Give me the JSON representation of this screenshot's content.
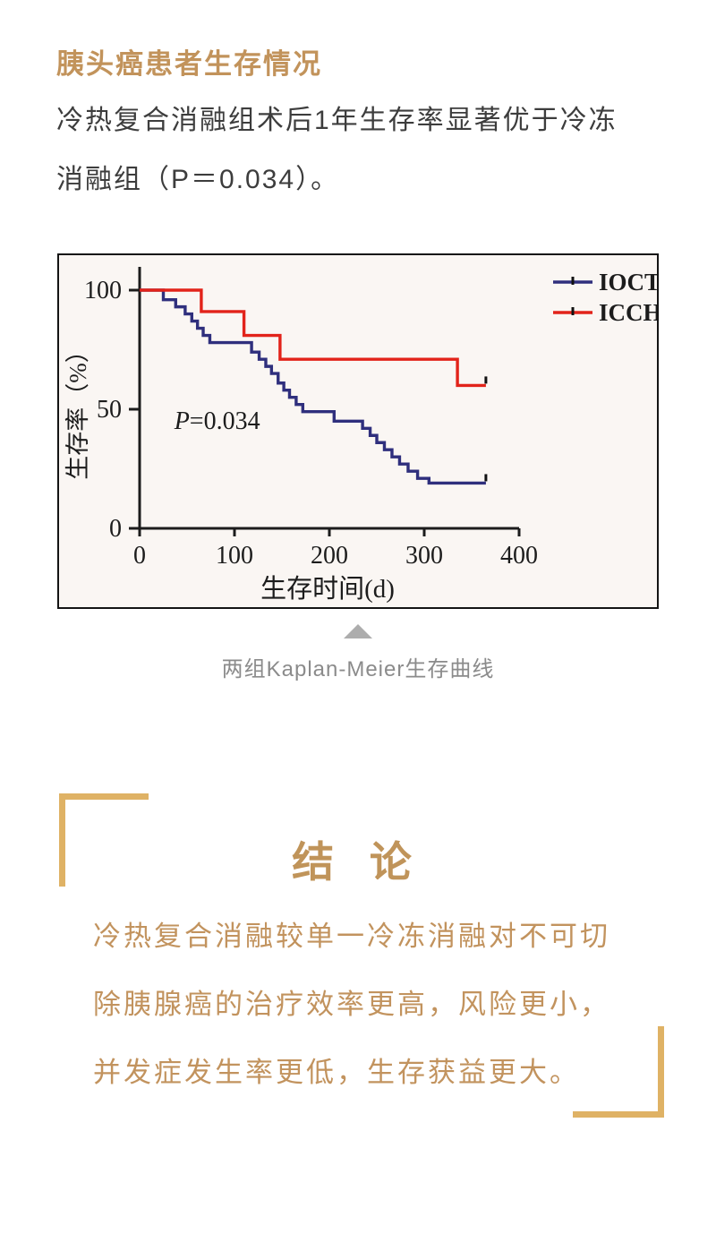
{
  "header": {
    "title": "胰头癌患者生存情况",
    "title_color": "#C2935B"
  },
  "intro": {
    "line1": "冷热复合消融组术后1年生存率显著优于冷冻",
    "line2": "消融组（P＝0.034）。"
  },
  "figure": {
    "caption": "两组Kaplan-Meier生存曲线",
    "arrow_icon": "up-triangle",
    "border_color": "#141414",
    "background": "#FAF6F3"
  },
  "chart_data": {
    "type": "line",
    "subtype": "kaplan-meier-step",
    "xlabel": "生存时间(d)",
    "ylabel": "生存率（%）",
    "xlim": [
      0,
      400
    ],
    "ylim": [
      0,
      100
    ],
    "x_ticks": [
      "0",
      "100",
      "200",
      "300",
      "400"
    ],
    "x_tick_values": [
      0,
      100,
      200,
      300,
      400
    ],
    "y_ticks": [
      "0",
      "50",
      "100"
    ],
    "y_tick_values": [
      0,
      50,
      100
    ],
    "grid": "off",
    "legend_position": "top-right",
    "axis_color": "#1C1C1C",
    "annotation": {
      "italic": "P",
      "rest": "=0.034",
      "x": 95,
      "y": 26
    },
    "end_day": 365,
    "censor_at_end": true,
    "series": [
      {
        "name": "IOCT",
        "color": "#2F2F7D",
        "points": [
          [
            0,
            100
          ],
          [
            25,
            96
          ],
          [
            38,
            93
          ],
          [
            48,
            90
          ],
          [
            55,
            87
          ],
          [
            61,
            84
          ],
          [
            67,
            81
          ],
          [
            74,
            78
          ],
          [
            118,
            74
          ],
          [
            126,
            71
          ],
          [
            133,
            68
          ],
          [
            139,
            65
          ],
          [
            146,
            61
          ],
          [
            152,
            58
          ],
          [
            158,
            55
          ],
          [
            165,
            52
          ],
          [
            172,
            49
          ],
          [
            205,
            45
          ],
          [
            235,
            42
          ],
          [
            243,
            39
          ],
          [
            250,
            36
          ],
          [
            258,
            33
          ],
          [
            266,
            30
          ],
          [
            274,
            27
          ],
          [
            283,
            24
          ],
          [
            293,
            21
          ],
          [
            305,
            19
          ]
        ]
      },
      {
        "name": "ICCH",
        "color": "#E2231A",
        "points": [
          [
            0,
            100
          ],
          [
            65,
            91
          ],
          [
            110,
            81
          ],
          [
            148,
            71
          ],
          [
            335,
            60
          ]
        ]
      }
    ]
  },
  "conclusion": {
    "title": "结 论",
    "lines": [
      "冷热复合消融较单一冷冻消融对不可切",
      "除胰腺癌的治疗效率更高，风险更小，",
      "并发症发生率更低，生存获益更大。"
    ],
    "accent_color": "#DFB265",
    "text_color": "#C2935E"
  }
}
